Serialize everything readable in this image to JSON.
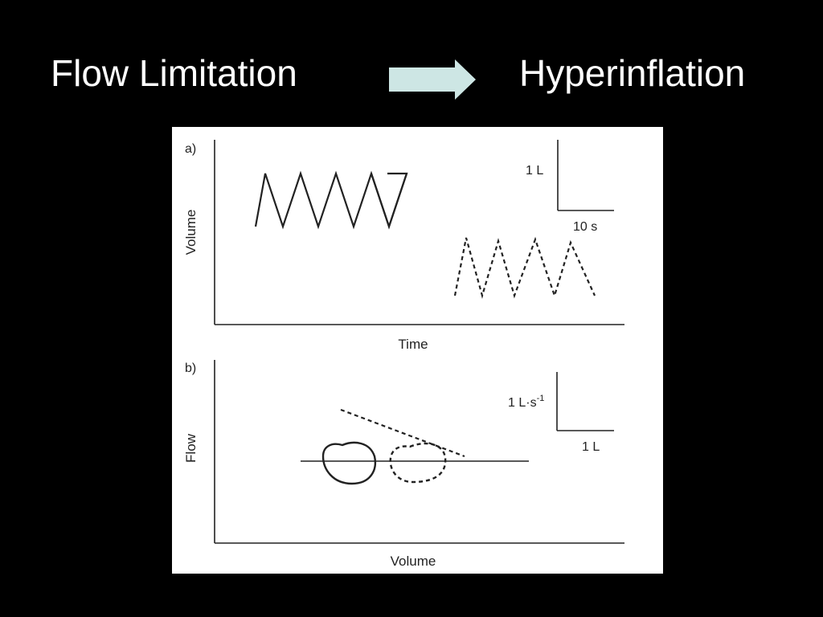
{
  "slide": {
    "title_left": "Flow Limitation",
    "title_right": "Hyperinflation",
    "arrow_icon": "right-arrow-icon",
    "arrow_color": "#cde6e4"
  },
  "figure": {
    "panel_a": {
      "label": "a)",
      "y_axis_label": "Volume",
      "x_axis_label": "Time",
      "scale_vertical": "1 L",
      "scale_horizontal": "10 s"
    },
    "panel_b": {
      "label": "b)",
      "y_axis_label": "Flow",
      "x_axis_label": "Volume",
      "scale_vertical_prefix": "1 L·s",
      "scale_vertical_exponent": "-1",
      "scale_horizontal": "1 L"
    }
  }
}
